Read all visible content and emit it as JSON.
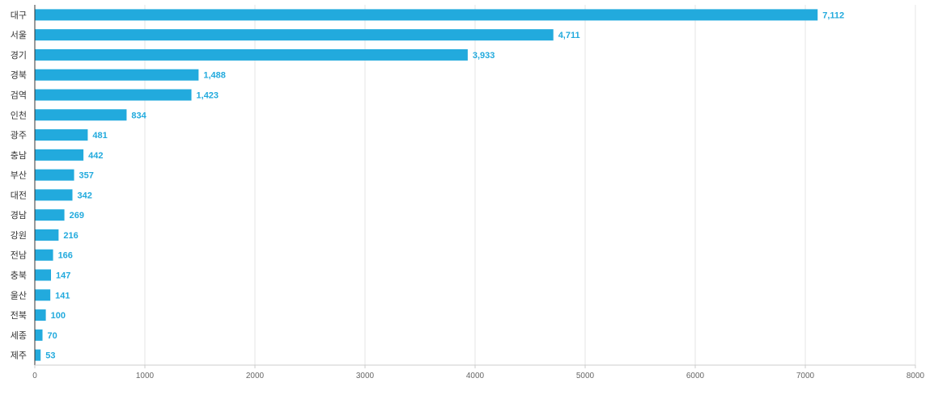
{
  "chart_data": {
    "type": "bar",
    "orientation": "horizontal",
    "categories": [
      "대구",
      "서울",
      "경기",
      "경북",
      "검역",
      "인천",
      "광주",
      "충남",
      "부산",
      "대전",
      "경남",
      "강원",
      "전남",
      "충북",
      "울산",
      "전북",
      "세종",
      "제주"
    ],
    "values": [
      7112,
      4711,
      3933,
      1488,
      1423,
      834,
      481,
      442,
      357,
      342,
      269,
      216,
      166,
      147,
      141,
      100,
      70,
      53
    ],
    "value_labels": [
      "7,112",
      "4,711",
      "3,933",
      "1,488",
      "1,423",
      "834",
      "481",
      "442",
      "357",
      "342",
      "269",
      "216",
      "166",
      "147",
      "141",
      "100",
      "70",
      "53"
    ],
    "x_ticks": [
      0,
      1000,
      2000,
      3000,
      4000,
      5000,
      6000,
      7000,
      8000
    ],
    "x_tick_labels": [
      "0",
      "1000",
      "2000",
      "3000",
      "4000",
      "5000",
      "6000",
      "7000",
      "8000"
    ],
    "xlim": [
      0,
      8000
    ],
    "grid": true,
    "legend": "none",
    "colors": {
      "bar": "#22aadd",
      "label": "#22aadd"
    }
  }
}
